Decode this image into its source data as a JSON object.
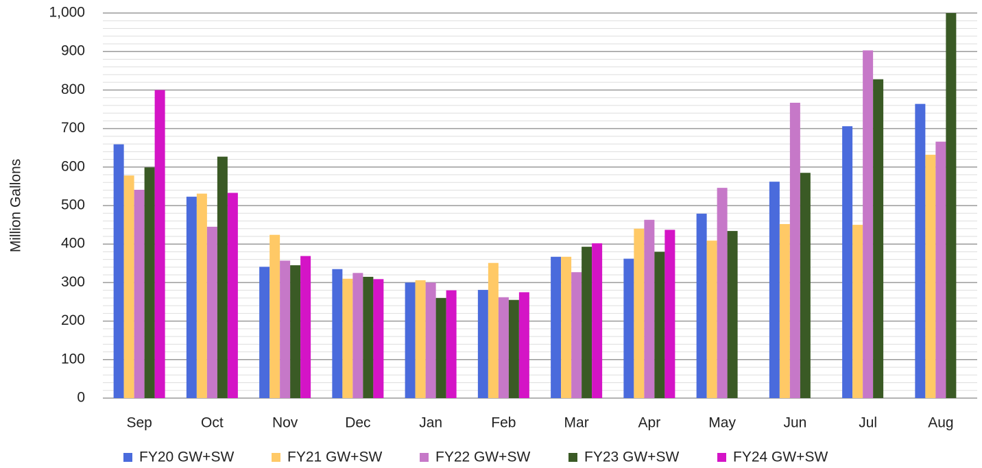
{
  "chart_data": {
    "type": "bar",
    "y_label": "Million Gallons",
    "categories": [
      "Sep",
      "Oct",
      "Nov",
      "Dec",
      "Jan",
      "Feb",
      "Mar",
      "Apr",
      "May",
      "Jun",
      "Jul",
      "Aug"
    ],
    "series": [
      {
        "name": "FY20 GW+SW",
        "color": "#4a6bdc",
        "values": [
          659,
          523,
          341,
          335,
          300,
          281,
          367,
          362,
          479,
          562,
          706,
          764
        ]
      },
      {
        "name": "FY21 GW+SW",
        "color": "#ffc966",
        "values": [
          578,
          531,
          424,
          310,
          306,
          351,
          367,
          440,
          409,
          452,
          450,
          632
        ]
      },
      {
        "name": "FY22 GW+SW",
        "color": "#c678c8",
        "values": [
          541,
          445,
          357,
          325,
          300,
          262,
          327,
          463,
          546,
          767,
          903,
          666
        ]
      },
      {
        "name": "FY23 GW+SW",
        "color": "#3a5a25",
        "values": [
          599,
          627,
          345,
          315,
          260,
          255,
          393,
          380,
          434,
          585,
          828,
          1000
        ]
      },
      {
        "name": "FY24 GW+SW",
        "color": "#d414c6",
        "values": [
          800,
          533,
          369,
          309,
          280,
          275,
          402,
          437,
          null,
          null,
          null,
          null
        ]
      }
    ],
    "ylim": [
      0,
      1000
    ],
    "yticks": [
      0,
      100,
      200,
      300,
      400,
      500,
      600,
      700,
      800,
      900,
      {
        "value": 1000,
        "label": "1,000"
      }
    ],
    "minor_yticks": [
      20,
      40,
      60,
      80,
      120,
      140,
      160,
      180,
      220,
      240,
      260,
      280,
      320,
      340,
      360,
      380,
      420,
      440,
      460,
      480,
      520,
      540,
      560,
      580,
      620,
      640,
      660,
      680,
      720,
      740,
      760,
      780,
      820,
      840,
      860,
      880,
      920,
      940,
      960,
      980
    ],
    "grid": true,
    "legend": "bottom"
  }
}
